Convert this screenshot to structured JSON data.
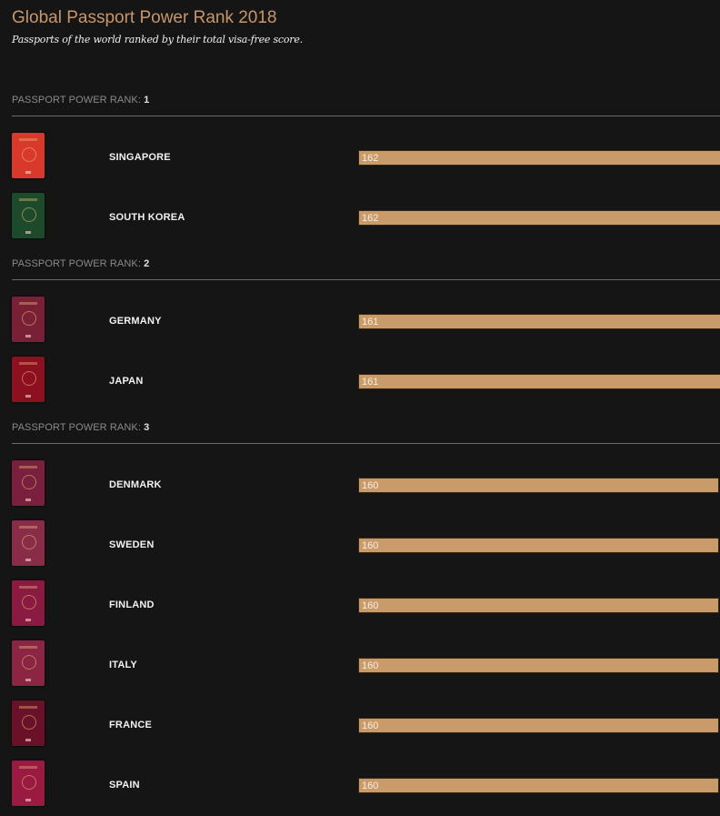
{
  "title": "Global Passport Power Rank 2018",
  "subtitle": "Passports of the world ranked by their total visa-free score.",
  "colors": {
    "accent": "#c8966a",
    "bar": "#c99a6a",
    "background": "#151515"
  },
  "chart_data": {
    "type": "bar",
    "orientation": "horizontal",
    "title": "Global Passport Power Rank 2018",
    "subtitle": "Passports of the world ranked by their total visa-free score.",
    "rank_label": "PASSPORT POWER RANK:",
    "xlim": [
      0,
      162
    ],
    "groups": [
      {
        "rank": "1",
        "items": [
          {
            "country": "SINGAPORE",
            "value": 162,
            "passport_color": "#d8392b"
          },
          {
            "country": "SOUTH KOREA",
            "value": 162,
            "passport_color": "#1e4a2c"
          }
        ]
      },
      {
        "rank": "2",
        "items": [
          {
            "country": "GERMANY",
            "value": 161,
            "passport_color": "#7a2036"
          },
          {
            "country": "JAPAN",
            "value": 161,
            "passport_color": "#8c1020"
          }
        ]
      },
      {
        "rank": "3",
        "items": [
          {
            "country": "DENMARK",
            "value": 160,
            "passport_color": "#7a1f3e"
          },
          {
            "country": "SWEDEN",
            "value": 160,
            "passport_color": "#8a2c48"
          },
          {
            "country": "FINLAND",
            "value": 160,
            "passport_color": "#8a1a42"
          },
          {
            "country": "ITALY",
            "value": 160,
            "passport_color": "#8c2444"
          },
          {
            "country": "FRANCE",
            "value": 160,
            "passport_color": "#6a1028"
          },
          {
            "country": "SPAIN",
            "value": 160,
            "passport_color": "#9a1a42"
          }
        ]
      }
    ]
  }
}
